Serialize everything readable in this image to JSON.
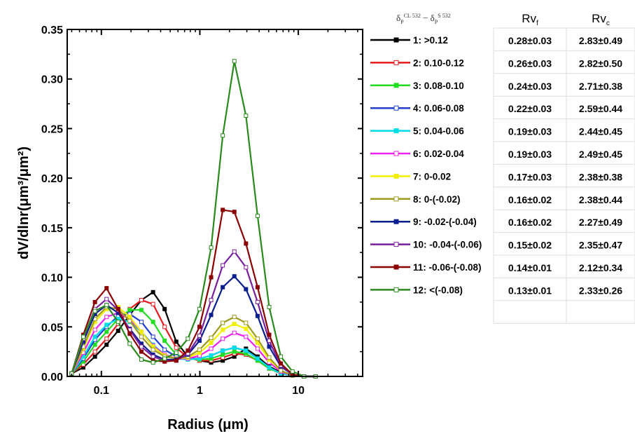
{
  "chart_data": {
    "type": "line",
    "x_scale": "log",
    "xlim": [
      0.045,
      45
    ],
    "ylim": [
      0,
      0.35
    ],
    "xlabel": "Radius (μm)",
    "ylabel": "dV/dlnr(μm³/μm²)",
    "x_ticks": [
      "0.1",
      "1",
      "10"
    ],
    "y_ticks": [
      "0.00",
      "0.05",
      "0.10",
      "0.15",
      "0.20",
      "0.25",
      "0.30",
      "0.35"
    ],
    "legend_title": "δP_532^CL − δP_532^S",
    "legend_position": "right",
    "x": [
      0.05,
      0.0656,
      0.0861,
      0.113,
      0.148,
      0.194,
      0.255,
      0.335,
      0.439,
      0.576,
      0.756,
      0.992,
      1.302,
      1.708,
      2.241,
      2.94,
      3.857,
      5.061,
      6.64,
      8.712,
      11.43,
      15.0
    ],
    "series": [
      {
        "name": "1: >0.12",
        "color": "#000000",
        "marker": "filled",
        "values": [
          0.003,
          0.009,
          0.02,
          0.032,
          0.046,
          0.062,
          0.077,
          0.085,
          0.068,
          0.035,
          0.02,
          0.016,
          0.014,
          0.016,
          0.02,
          0.028,
          0.02,
          0.01,
          0.004,
          0.001,
          0.0,
          0.0
        ]
      },
      {
        "name": "2: 0.10-0.12",
        "color": "#e41a1c",
        "marker": "open",
        "values": [
          0.003,
          0.012,
          0.025,
          0.038,
          0.053,
          0.068,
          0.077,
          0.073,
          0.05,
          0.029,
          0.019,
          0.016,
          0.016,
          0.019,
          0.023,
          0.022,
          0.016,
          0.008,
          0.003,
          0.001,
          0.0,
          0.0
        ]
      },
      {
        "name": "3: 0.08-0.10",
        "color": "#22dd22",
        "marker": "filled",
        "values": [
          0.003,
          0.015,
          0.032,
          0.045,
          0.058,
          0.067,
          0.067,
          0.055,
          0.036,
          0.022,
          0.018,
          0.017,
          0.018,
          0.022,
          0.025,
          0.023,
          0.016,
          0.008,
          0.003,
          0.001,
          0.0,
          0.0
        ]
      },
      {
        "name": "4: 0.06-0.08",
        "color": "#1f3fd0",
        "marker": "open",
        "values": [
          0.003,
          0.018,
          0.037,
          0.05,
          0.061,
          0.063,
          0.055,
          0.04,
          0.027,
          0.02,
          0.018,
          0.018,
          0.021,
          0.026,
          0.029,
          0.026,
          0.018,
          0.009,
          0.003,
          0.001,
          0.0,
          0.0
        ]
      },
      {
        "name": "5: 0.04-0.06",
        "color": "#00dde8",
        "marker": "filled",
        "values": [
          0.003,
          0.02,
          0.04,
          0.052,
          0.058,
          0.055,
          0.045,
          0.032,
          0.022,
          0.018,
          0.017,
          0.018,
          0.021,
          0.026,
          0.029,
          0.026,
          0.018,
          0.009,
          0.003,
          0.001,
          0.0,
          0.0
        ]
      },
      {
        "name": "6: 0.02-0.04",
        "color": "#ee22ee",
        "marker": "open",
        "values": [
          0.003,
          0.024,
          0.047,
          0.06,
          0.064,
          0.058,
          0.045,
          0.031,
          0.022,
          0.018,
          0.018,
          0.021,
          0.028,
          0.038,
          0.044,
          0.04,
          0.028,
          0.014,
          0.005,
          0.001,
          0.0,
          0.0
        ]
      },
      {
        "name": "7: 0-0.02",
        "color": "#f0f000",
        "marker": "filled",
        "values": [
          0.003,
          0.028,
          0.055,
          0.068,
          0.07,
          0.06,
          0.045,
          0.03,
          0.021,
          0.018,
          0.019,
          0.024,
          0.034,
          0.047,
          0.053,
          0.048,
          0.034,
          0.017,
          0.006,
          0.001,
          0.0,
          0.0
        ]
      },
      {
        "name": "8: 0-(-0.02)",
        "color": "#9e9a1e",
        "marker": "open",
        "values": [
          0.003,
          0.03,
          0.058,
          0.07,
          0.068,
          0.056,
          0.04,
          0.027,
          0.02,
          0.018,
          0.02,
          0.027,
          0.039,
          0.054,
          0.06,
          0.054,
          0.038,
          0.019,
          0.006,
          0.001,
          0.0,
          0.0
        ]
      },
      {
        "name": "9: -0.02-(-0.04)",
        "color": "#0a1f8f",
        "marker": "filled",
        "values": [
          0.003,
          0.035,
          0.063,
          0.072,
          0.064,
          0.048,
          0.033,
          0.022,
          0.017,
          0.017,
          0.022,
          0.036,
          0.062,
          0.09,
          0.101,
          0.088,
          0.061,
          0.03,
          0.01,
          0.002,
          0.0,
          0.0
        ]
      },
      {
        "name": "10: -0.04-(-0.06)",
        "color": "#7a1fa0",
        "marker": "open",
        "values": [
          0.003,
          0.038,
          0.068,
          0.078,
          0.067,
          0.047,
          0.03,
          0.02,
          0.016,
          0.016,
          0.023,
          0.041,
          0.077,
          0.112,
          0.126,
          0.11,
          0.075,
          0.036,
          0.011,
          0.002,
          0.0,
          0.0
        ]
      },
      {
        "name": "11: -0.06-(-0.08)",
        "color": "#8b0000",
        "marker": "filled",
        "values": [
          0.003,
          0.042,
          0.075,
          0.089,
          0.068,
          0.043,
          0.025,
          0.016,
          0.015,
          0.016,
          0.026,
          0.05,
          0.1,
          0.168,
          0.166,
          0.134,
          0.09,
          0.042,
          0.013,
          0.002,
          0.0,
          0.0
        ]
      },
      {
        "name": "12: <(-0.08)",
        "color": "#2a8a1e",
        "marker": "open",
        "values": [
          0.003,
          0.04,
          0.066,
          0.072,
          0.055,
          0.033,
          0.017,
          0.014,
          0.018,
          0.024,
          0.038,
          0.068,
          0.13,
          0.243,
          0.318,
          0.263,
          0.162,
          0.07,
          0.02,
          0.005,
          0.0,
          0.0
        ]
      }
    ]
  },
  "table": {
    "headers": [
      {
        "main": "Rv",
        "sub": "f"
      },
      {
        "main": "Rv",
        "sub": "c"
      }
    ],
    "rows": [
      [
        "0.28±0.03",
        "2.83±0.49"
      ],
      [
        "0.26±0.03",
        "2.82±0.50"
      ],
      [
        "0.24±0.03",
        "2.71±0.38"
      ],
      [
        "0.22±0.03",
        "2.59±0.44"
      ],
      [
        "0.19±0.03",
        "2.44±0.45"
      ],
      [
        "0.19±0.03",
        "2.49±0.45"
      ],
      [
        "0.17±0.03",
        "2.38±0.38"
      ],
      [
        "0.16±0.02",
        "2.38±0.44"
      ],
      [
        "0.16±0.02",
        "2.27±0.49"
      ],
      [
        "0.15±0.02",
        "2.35±0.47"
      ],
      [
        "0.14±0.01",
        "2.12±0.34"
      ],
      [
        "0.13±0.01",
        "2.33±0.26"
      ]
    ]
  }
}
